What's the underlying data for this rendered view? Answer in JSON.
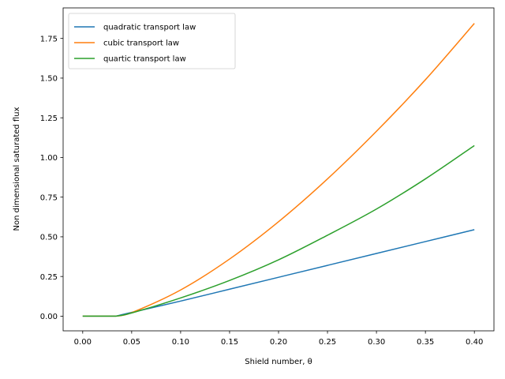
{
  "chart_data": {
    "type": "line",
    "xlabel": "Shield number, θ",
    "ylabel": "Non dimensional saturated flux",
    "xlim": [
      -0.02,
      0.42
    ],
    "ylim": [
      -0.0925,
      1.9425
    ],
    "grid": false,
    "legend_position": "top-left",
    "x_ticks": [
      "0.00",
      "0.05",
      "0.10",
      "0.15",
      "0.20",
      "0.25",
      "0.30",
      "0.35",
      "0.40"
    ],
    "y_ticks": [
      "0.00",
      "0.25",
      "0.50",
      "0.75",
      "1.00",
      "1.25",
      "1.50",
      "1.75"
    ],
    "x": [
      0.0,
      0.034,
      0.05,
      0.1,
      0.15,
      0.2,
      0.25,
      0.3,
      0.35,
      0.4
    ],
    "series": [
      {
        "name": "quadratic transport law",
        "color": "#1f77b4",
        "values": [
          0.0,
          0.0,
          0.024,
          0.095,
          0.17,
          0.245,
          0.32,
          0.395,
          0.47,
          0.545
        ]
      },
      {
        "name": "cubic transport law",
        "color": "#ff7f0e",
        "values": [
          0.0,
          0.0,
          0.022,
          0.165,
          0.36,
          0.595,
          0.865,
          1.165,
          1.49,
          1.845
        ]
      },
      {
        "name": "quartic transport law",
        "color": "#2ca02c",
        "values": [
          0.0,
          0.0,
          0.02,
          0.115,
          0.225,
          0.355,
          0.51,
          0.675,
          0.865,
          1.075
        ]
      }
    ]
  }
}
